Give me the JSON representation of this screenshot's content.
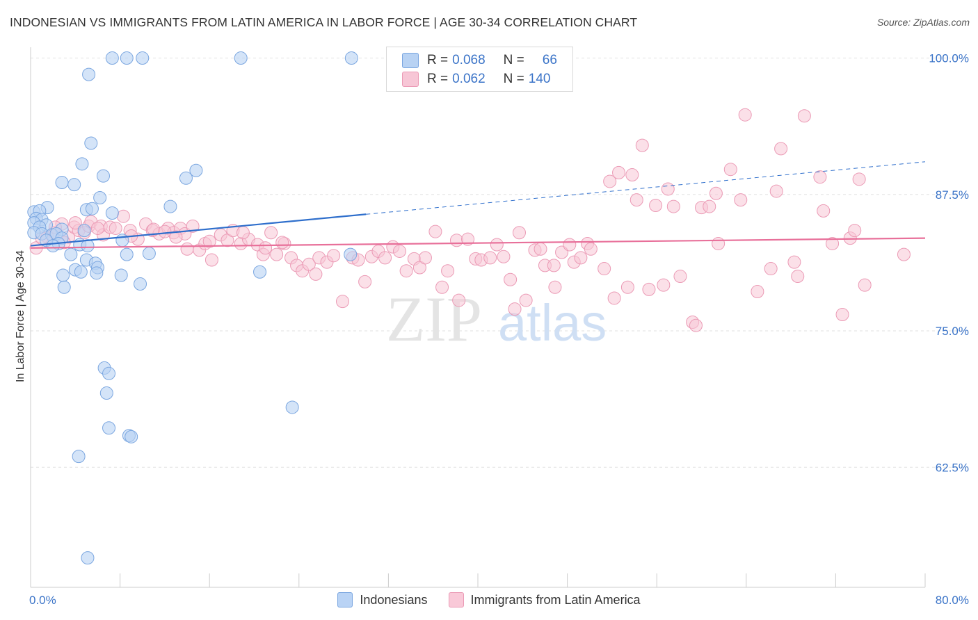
{
  "header": {
    "title": "INDONESIAN VS IMMIGRANTS FROM LATIN AMERICA IN LABOR FORCE | AGE 30-34 CORRELATION CHART",
    "source": "Source: ZipAtlas.com"
  },
  "watermark": {
    "zip": "ZIP",
    "atlas": "atlas"
  },
  "stats": [
    {
      "r_label": "R =",
      "r_value": "0.068",
      "n_label": "N =",
      "n_value": "66",
      "color": "#a9c7f0"
    },
    {
      "r_label": "R =",
      "r_value": "0.062",
      "n_label": "N =",
      "n_value": "140",
      "color": "#f7b9cc"
    }
  ],
  "legend": [
    {
      "label": "Indonesians",
      "color": "#b9d3f5"
    },
    {
      "label": "Immigrants from Latin America",
      "color": "#f9c9d8"
    }
  ],
  "colors": {
    "blue_fill": "#b8d2f3",
    "blue_stroke": "#7aa6e0",
    "blue_line": "#2f6fcc",
    "pink_fill": "#f7c6d6",
    "pink_stroke": "#eb9ab5",
    "pink_line": "#e8709a",
    "axis_text": "#3b74c8",
    "grid": "#e2e2e2"
  },
  "chart_data": {
    "type": "scatter",
    "title": "INDONESIAN VS IMMIGRANTS FROM LATIN AMERICA IN LABOR FORCE | AGE 30-34 CORRELATION CHART",
    "xlabel": "",
    "ylabel": "In Labor Force | Age 30-34",
    "xlim": [
      0,
      80
    ],
    "ylim": [
      51.5,
      101.5
    ],
    "x_tick_labels": [
      "0.0%",
      "80.0%"
    ],
    "y_ticks": [
      62.5,
      75.0,
      87.5,
      100.0
    ],
    "y_tick_labels": [
      "62.5%",
      "75.0%",
      "87.5%",
      "100.0%"
    ],
    "series": [
      {
        "name": "Indonesians",
        "points": [
          [
            7.3,
            100
          ],
          [
            8.6,
            100
          ],
          [
            10.0,
            100
          ],
          [
            18.8,
            100
          ],
          [
            28.7,
            100
          ],
          [
            5.2,
            98.5
          ],
          [
            5.4,
            92.2
          ],
          [
            4.6,
            90.3
          ],
          [
            6.5,
            89.2
          ],
          [
            14.8,
            89.7
          ],
          [
            13.9,
            89.0
          ],
          [
            2.8,
            88.6
          ],
          [
            3.9,
            88.4
          ],
          [
            6.2,
            87.2
          ],
          [
            12.5,
            86.4
          ],
          [
            1.5,
            86.3
          ],
          [
            5.0,
            86.1
          ],
          [
            5.5,
            86.2
          ],
          [
            0.3,
            85.9
          ],
          [
            0.8,
            86.0
          ],
          [
            7.3,
            85.8
          ],
          [
            0.5,
            85.3
          ],
          [
            1.0,
            85.2
          ],
          [
            0.3,
            84.9
          ],
          [
            1.4,
            84.7
          ],
          [
            2.8,
            84.3
          ],
          [
            4.8,
            84.2
          ],
          [
            0.8,
            84.5
          ],
          [
            0.3,
            84.0
          ],
          [
            1.0,
            83.9
          ],
          [
            1.9,
            83.8
          ],
          [
            2.3,
            83.9
          ],
          [
            2.8,
            83.5
          ],
          [
            1.4,
            83.3
          ],
          [
            2.5,
            83.0
          ],
          [
            2.0,
            82.8
          ],
          [
            4.4,
            82.9
          ],
          [
            5.1,
            82.8
          ],
          [
            8.2,
            83.3
          ],
          [
            3.6,
            82.0
          ],
          [
            5.0,
            81.5
          ],
          [
            5.8,
            81.2
          ],
          [
            6.0,
            80.8
          ],
          [
            8.6,
            82.0
          ],
          [
            10.6,
            82.1
          ],
          [
            2.9,
            80.1
          ],
          [
            4.0,
            80.6
          ],
          [
            4.5,
            80.4
          ],
          [
            5.9,
            80.3
          ],
          [
            8.1,
            80.1
          ],
          [
            20.5,
            80.4
          ],
          [
            28.6,
            82.0
          ],
          [
            3.0,
            79.0
          ],
          [
            9.8,
            79.3
          ],
          [
            6.6,
            71.6
          ],
          [
            7.0,
            71.1
          ],
          [
            6.8,
            69.3
          ],
          [
            23.4,
            68.0
          ],
          [
            7.0,
            66.1
          ],
          [
            8.8,
            65.4
          ],
          [
            9.0,
            65.3
          ],
          [
            4.3,
            63.5
          ],
          [
            5.1,
            54.2
          ]
        ],
        "trend": {
          "x": [
            0,
            80
          ],
          "y": [
            82.8,
            90.5
          ],
          "solid_until": 30
        }
      },
      {
        "name": "Immigrants from Latin America",
        "points": [
          [
            0.5,
            82.6
          ],
          [
            1.5,
            83.6
          ],
          [
            2.1,
            84.0
          ],
          [
            2.8,
            84.8
          ],
          [
            3.4,
            83.6
          ],
          [
            3.9,
            84.5
          ],
          [
            4.3,
            84.2
          ],
          [
            4.8,
            84.0
          ],
          [
            5.2,
            84.6
          ],
          [
            5.4,
            85.0
          ],
          [
            6.3,
            84.6
          ],
          [
            6.5,
            83.8
          ],
          [
            7.1,
            84.5
          ],
          [
            7.6,
            84.4
          ],
          [
            8.3,
            85.5
          ],
          [
            8.9,
            84.2
          ],
          [
            9.6,
            83.4
          ],
          [
            10.3,
            84.8
          ],
          [
            10.9,
            84.2
          ],
          [
            11.5,
            83.9
          ],
          [
            12.3,
            84.4
          ],
          [
            12.8,
            84.0
          ],
          [
            13.4,
            84.4
          ],
          [
            13.8,
            83.9
          ],
          [
            14.0,
            82.5
          ],
          [
            15.1,
            82.4
          ],
          [
            15.6,
            83.0
          ],
          [
            16.2,
            81.5
          ],
          [
            17.0,
            83.8
          ],
          [
            17.6,
            83.3
          ],
          [
            18.1,
            84.2
          ],
          [
            18.8,
            83.0
          ],
          [
            19.5,
            83.4
          ],
          [
            20.3,
            82.9
          ],
          [
            20.8,
            82.0
          ],
          [
            21.5,
            84.0
          ],
          [
            22.0,
            82.0
          ],
          [
            22.7,
            83.0
          ],
          [
            23.3,
            81.7
          ],
          [
            23.8,
            81.0
          ],
          [
            24.3,
            80.5
          ],
          [
            24.9,
            81.1
          ],
          [
            25.5,
            80.2
          ],
          [
            25.8,
            81.7
          ],
          [
            26.5,
            81.3
          ],
          [
            27.1,
            81.9
          ],
          [
            27.9,
            77.7
          ],
          [
            28.8,
            81.7
          ],
          [
            29.3,
            81.5
          ],
          [
            29.9,
            79.5
          ],
          [
            30.5,
            81.8
          ],
          [
            31.1,
            82.3
          ],
          [
            31.7,
            81.7
          ],
          [
            32.4,
            82.7
          ],
          [
            33.0,
            82.3
          ],
          [
            33.6,
            80.5
          ],
          [
            34.3,
            81.6
          ],
          [
            34.8,
            80.8
          ],
          [
            35.3,
            81.7
          ],
          [
            36.2,
            84.1
          ],
          [
            36.8,
            79.0
          ],
          [
            37.3,
            80.5
          ],
          [
            38.1,
            83.3
          ],
          [
            38.3,
            77.8
          ],
          [
            39.1,
            83.4
          ],
          [
            39.8,
            81.6
          ],
          [
            40.3,
            81.5
          ],
          [
            41.1,
            81.7
          ],
          [
            41.7,
            82.9
          ],
          [
            42.3,
            81.8
          ],
          [
            42.9,
            79.7
          ],
          [
            43.3,
            77.0
          ],
          [
            43.7,
            84.0
          ],
          [
            44.3,
            77.8
          ],
          [
            45.1,
            82.4
          ],
          [
            45.6,
            82.5
          ],
          [
            46.0,
            81.0
          ],
          [
            46.8,
            81.0
          ],
          [
            46.9,
            79.0
          ],
          [
            47.5,
            82.2
          ],
          [
            48.2,
            82.9
          ],
          [
            48.6,
            81.3
          ],
          [
            49.2,
            81.7
          ],
          [
            49.8,
            83.0
          ],
          [
            50.1,
            82.5
          ],
          [
            51.3,
            80.7
          ],
          [
            51.8,
            88.7
          ],
          [
            52.2,
            78.0
          ],
          [
            52.6,
            89.5
          ],
          [
            53.4,
            79.0
          ],
          [
            53.8,
            89.3
          ],
          [
            54.2,
            87.0
          ],
          [
            54.7,
            92.0
          ],
          [
            55.3,
            78.8
          ],
          [
            55.9,
            86.5
          ],
          [
            56.6,
            79.2
          ],
          [
            57.0,
            88.0
          ],
          [
            57.5,
            86.4
          ],
          [
            58.1,
            80.0
          ],
          [
            59.2,
            75.8
          ],
          [
            59.5,
            75.5
          ],
          [
            60.0,
            86.3
          ],
          [
            60.7,
            86.4
          ],
          [
            61.3,
            87.6
          ],
          [
            61.5,
            83.0
          ],
          [
            62.6,
            89.8
          ],
          [
            63.5,
            87.0
          ],
          [
            63.9,
            94.8
          ],
          [
            65.0,
            78.6
          ],
          [
            66.2,
            80.7
          ],
          [
            66.7,
            87.8
          ],
          [
            67.1,
            91.7
          ],
          [
            68.3,
            81.3
          ],
          [
            68.6,
            80.0
          ],
          [
            69.2,
            94.7
          ],
          [
            70.6,
            89.1
          ],
          [
            70.9,
            86.0
          ],
          [
            71.7,
            83.0
          ],
          [
            72.6,
            76.5
          ],
          [
            73.3,
            83.5
          ],
          [
            73.7,
            84.2
          ],
          [
            74.1,
            88.9
          ],
          [
            74.6,
            79.2
          ],
          [
            78.1,
            82.0
          ],
          [
            1.0,
            83.5
          ],
          [
            2.2,
            84.5
          ],
          [
            3.0,
            83.1
          ],
          [
            4.0,
            84.9
          ],
          [
            6.0,
            84.4
          ],
          [
            9.0,
            83.7
          ],
          [
            11.0,
            84.3
          ],
          [
            12.0,
            84.1
          ],
          [
            13.0,
            83.6
          ],
          [
            14.5,
            84.6
          ],
          [
            16.0,
            83.2
          ],
          [
            19.0,
            84.0
          ],
          [
            21.0,
            82.6
          ],
          [
            22.5,
            83.1
          ]
        ],
        "trend": {
          "x": [
            0,
            80
          ],
          "y": [
            82.6,
            83.5
          ]
        }
      }
    ]
  }
}
